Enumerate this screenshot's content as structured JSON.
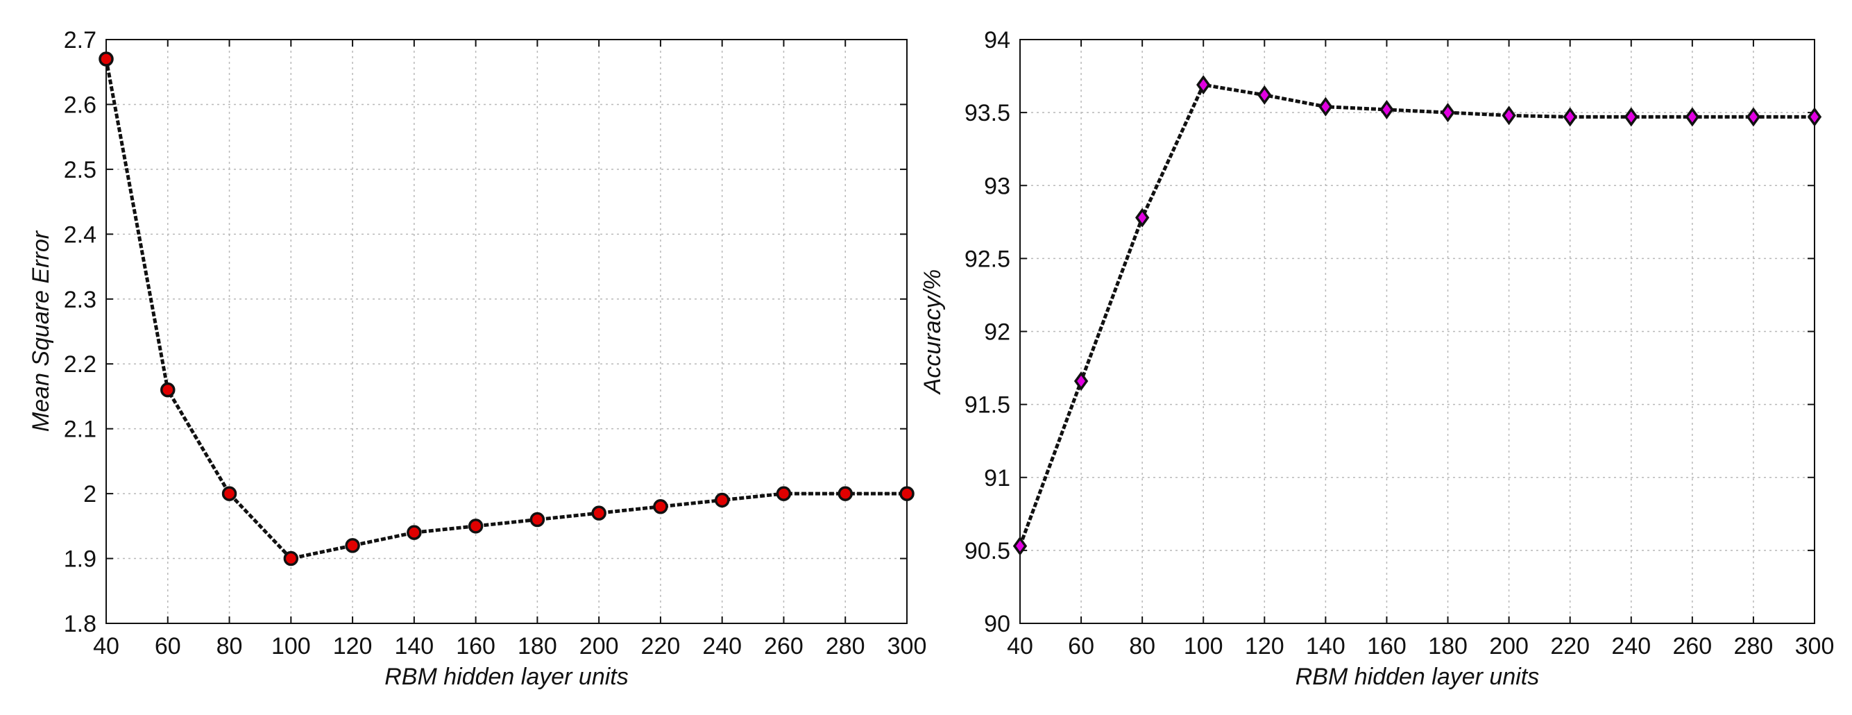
{
  "chart_data": [
    {
      "type": "line",
      "title": "",
      "xlabel": "RBM hidden layer units",
      "ylabel": "Mean Square Error",
      "x": [
        40,
        60,
        80,
        100,
        120,
        140,
        160,
        180,
        200,
        220,
        240,
        260,
        280,
        300
      ],
      "series": [
        {
          "values": [
            2.67,
            2.16,
            2.0,
            1.9,
            1.92,
            1.94,
            1.95,
            1.96,
            1.97,
            1.98,
            1.99,
            2.0,
            2.0,
            2.0
          ]
        }
      ],
      "xlim": [
        40,
        300
      ],
      "ylim": [
        1.8,
        2.7
      ],
      "xticks": [
        40,
        60,
        80,
        100,
        120,
        140,
        160,
        180,
        200,
        220,
        240,
        260,
        280,
        300
      ],
      "yticks": [
        1.8,
        1.9,
        2,
        2.1,
        2.2,
        2.3,
        2.4,
        2.5,
        2.6,
        2.7
      ],
      "grid": true,
      "marker": "circle",
      "marker_color": "#e00000",
      "line_style": "dashed",
      "line_color": "#111111"
    },
    {
      "type": "line",
      "title": "",
      "xlabel": "RBM hidden layer units",
      "ylabel": "Accuracy/%",
      "x": [
        40,
        60,
        80,
        100,
        120,
        140,
        160,
        180,
        200,
        220,
        240,
        260,
        280,
        300
      ],
      "series": [
        {
          "values": [
            90.53,
            91.66,
            92.78,
            93.69,
            93.62,
            93.54,
            93.52,
            93.5,
            93.48,
            93.47,
            93.47,
            93.47,
            93.47,
            93.47
          ]
        }
      ],
      "xlim": [
        40,
        300
      ],
      "ylim": [
        90,
        94
      ],
      "xticks": [
        40,
        60,
        80,
        100,
        120,
        140,
        160,
        180,
        200,
        220,
        240,
        260,
        280,
        300
      ],
      "yticks": [
        90,
        90.5,
        91,
        91.5,
        92,
        92.5,
        93,
        93.5,
        94
      ],
      "grid": true,
      "marker": "diamond",
      "marker_color": "#e000e0",
      "line_style": "dashed",
      "line_color": "#111111"
    }
  ]
}
